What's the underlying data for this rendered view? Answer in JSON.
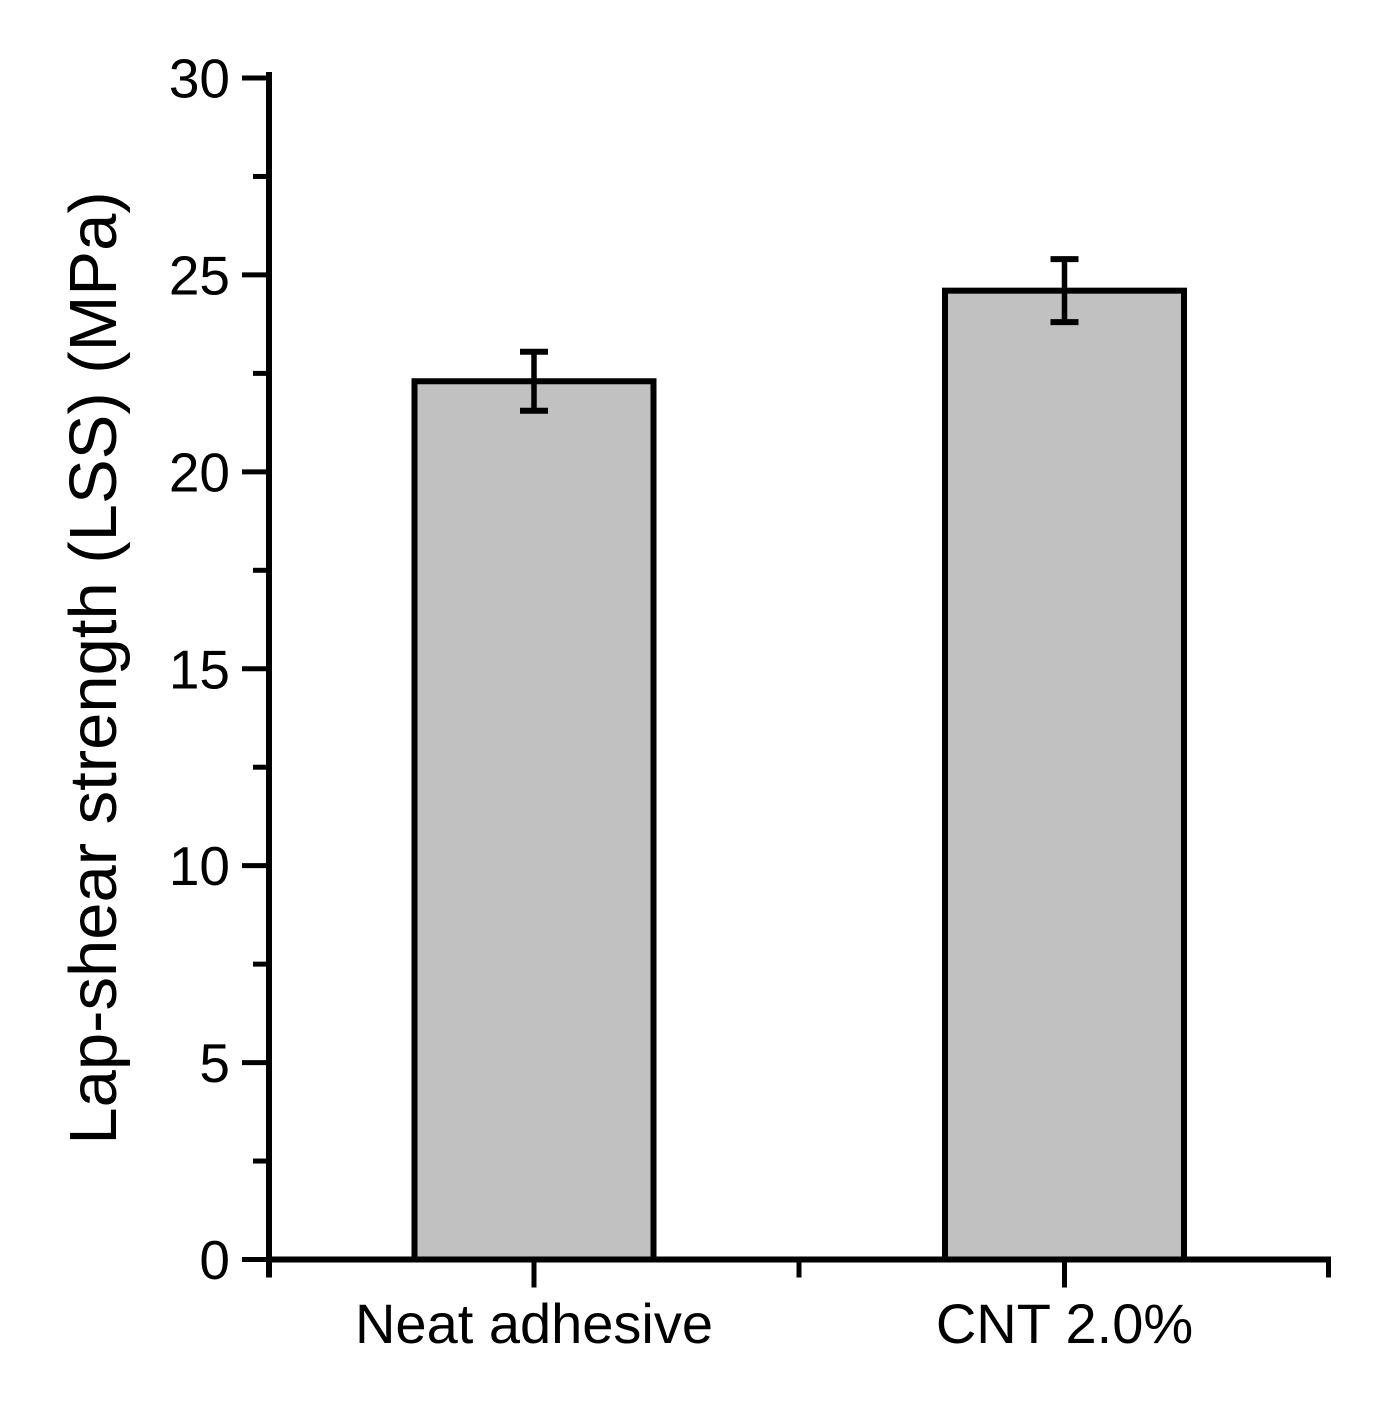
{
  "chart_data": {
    "type": "bar",
    "title": "",
    "categories": [
      "Neat adhesive",
      "CNT 2.0%"
    ],
    "values": [
      22.3,
      24.6
    ],
    "errors": [
      0.75,
      0.8
    ],
    "xlabel": "",
    "ylabel": "Lap-shear strength (LSS) (MPa)",
    "ylim": [
      0,
      30
    ],
    "y_major_ticks": [
      0,
      5,
      10,
      15,
      20,
      25,
      30
    ],
    "y_minor_ticks": [
      2.5,
      7.5,
      12.5,
      17.5,
      22.5,
      27.5
    ],
    "grid": false,
    "legend": false,
    "error_bar_style": "cap-both-ends",
    "colors": {
      "background": "#ffffff",
      "axis": "#000000",
      "tick": "#000000",
      "text": "#000000",
      "bar_fill": "#c1c1c1",
      "bar_edge": "#000000",
      "error_bar": "#000000"
    }
  }
}
